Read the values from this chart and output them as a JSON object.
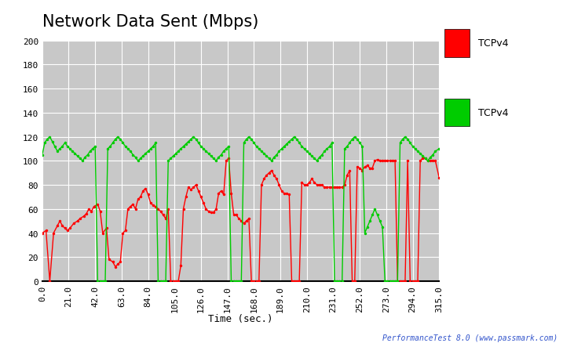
{
  "title": "Network Data Sent (Mbps)",
  "xlabel": "Time (sec.)",
  "ylabel": "",
  "xlim": [
    0,
    315
  ],
  "ylim": [
    0,
    200
  ],
  "xticks": [
    0.0,
    21.0,
    42.0,
    63.0,
    84.0,
    105.0,
    126.0,
    147.0,
    168.0,
    189.0,
    210.0,
    231.0,
    252.0,
    273.0,
    294.0,
    315.0
  ],
  "yticks": [
    0,
    20,
    40,
    60,
    80,
    100,
    120,
    140,
    160,
    180,
    200
  ],
  "background_color": "#ffffff",
  "plot_bg_color": "#c8c8c8",
  "grid_color": "#ffffff",
  "title_fontsize": 15,
  "axis_fontsize": 9,
  "tick_fontsize": 8,
  "watermark": "PerformanceTest 8.0 (www.passmark.com)",
  "legend": [
    {
      "label": "TCPv4",
      "color": "#ff0000"
    },
    {
      "label": "TCPv4",
      "color": "#00cc00"
    }
  ],
  "red_x": [
    0,
    3,
    6,
    9,
    12,
    14,
    16,
    18,
    20,
    22,
    25,
    28,
    30,
    33,
    35,
    37,
    39,
    41,
    44,
    46,
    48,
    51,
    53,
    56,
    58,
    60,
    62,
    64,
    66,
    68,
    70,
    72,
    74,
    76,
    78,
    80,
    82,
    84,
    86,
    88,
    90,
    92,
    94,
    96,
    98,
    100,
    102,
    104,
    106,
    108,
    110,
    112,
    114,
    116,
    118,
    120,
    122,
    124,
    126,
    128,
    130,
    132,
    134,
    136,
    138,
    140,
    142,
    144,
    146,
    148,
    150,
    152,
    154,
    156,
    158,
    160,
    162,
    164,
    166,
    168,
    170,
    172,
    174,
    176,
    178,
    180,
    182,
    184,
    186,
    188,
    190,
    192,
    194,
    196,
    198,
    200,
    202,
    204,
    206,
    208,
    210,
    212,
    214,
    216,
    218,
    220,
    222,
    224,
    226,
    228,
    230,
    232,
    234,
    236,
    238,
    240,
    242,
    244,
    246,
    248,
    250,
    252,
    254,
    256,
    258,
    260,
    262,
    264,
    266,
    268,
    270,
    272,
    274,
    276,
    278,
    280,
    282,
    284,
    286,
    288,
    290,
    292,
    294,
    296,
    298,
    300,
    302,
    304,
    306,
    308,
    310,
    312,
    315
  ],
  "red_y": [
    40,
    42,
    0,
    40,
    46,
    50,
    46,
    44,
    42,
    44,
    48,
    50,
    52,
    54,
    56,
    60,
    58,
    62,
    64,
    58,
    40,
    44,
    18,
    16,
    12,
    14,
    16,
    40,
    42,
    60,
    62,
    64,
    60,
    68,
    70,
    75,
    77,
    72,
    65,
    63,
    62,
    60,
    58,
    55,
    52,
    60,
    0,
    0,
    0,
    0,
    13,
    60,
    70,
    78,
    76,
    78,
    80,
    75,
    70,
    65,
    60,
    58,
    57,
    57,
    60,
    73,
    75,
    72,
    100,
    102,
    73,
    55,
    55,
    52,
    50,
    48,
    50,
    52,
    0,
    0,
    0,
    0,
    80,
    85,
    88,
    90,
    92,
    88,
    85,
    80,
    75,
    73,
    73,
    72,
    0,
    0,
    0,
    0,
    82,
    80,
    80,
    82,
    85,
    82,
    80,
    80,
    80,
    78,
    78,
    78,
    78,
    78,
    78,
    78,
    78,
    80,
    88,
    92,
    0,
    0,
    95,
    94,
    92,
    95,
    96,
    94,
    94,
    100,
    101,
    100,
    100,
    100,
    100,
    100,
    100,
    100,
    0,
    0,
    0,
    0,
    100,
    0,
    0,
    0,
    0,
    100,
    102,
    102,
    100,
    100,
    100,
    100,
    86
  ],
  "green_x": [
    0,
    2,
    4,
    6,
    8,
    10,
    12,
    14,
    16,
    18,
    20,
    22,
    24,
    26,
    28,
    30,
    32,
    34,
    36,
    38,
    40,
    42,
    44,
    46,
    48,
    50,
    52,
    54,
    56,
    58,
    60,
    62,
    64,
    66,
    68,
    70,
    72,
    74,
    76,
    78,
    80,
    82,
    84,
    86,
    88,
    90,
    92,
    94,
    96,
    98,
    100,
    102,
    104,
    106,
    108,
    110,
    112,
    114,
    116,
    118,
    120,
    122,
    124,
    126,
    128,
    130,
    132,
    134,
    136,
    138,
    140,
    142,
    144,
    146,
    148,
    150,
    152,
    154,
    156,
    158,
    160,
    162,
    164,
    166,
    168,
    170,
    172,
    174,
    176,
    178,
    180,
    182,
    184,
    186,
    188,
    190,
    192,
    194,
    196,
    198,
    200,
    202,
    204,
    206,
    208,
    210,
    212,
    214,
    216,
    218,
    220,
    222,
    224,
    226,
    228,
    230,
    232,
    234,
    236,
    238,
    240,
    242,
    244,
    246,
    248,
    250,
    252,
    254,
    256,
    258,
    260,
    262,
    264,
    266,
    268,
    270,
    272,
    274,
    276,
    278,
    280,
    282,
    284,
    286,
    288,
    290,
    292,
    294,
    296,
    298,
    300,
    302,
    304,
    306,
    308,
    310,
    312,
    315
  ],
  "green_y": [
    105,
    115,
    118,
    120,
    116,
    112,
    108,
    110,
    112,
    115,
    112,
    110,
    108,
    106,
    104,
    102,
    100,
    103,
    105,
    108,
    110,
    112,
    0,
    0,
    0,
    0,
    110,
    112,
    115,
    118,
    120,
    118,
    115,
    112,
    110,
    108,
    105,
    103,
    100,
    102,
    104,
    106,
    108,
    110,
    112,
    115,
    0,
    0,
    0,
    0,
    100,
    102,
    104,
    106,
    108,
    110,
    112,
    114,
    116,
    118,
    120,
    118,
    115,
    112,
    110,
    108,
    106,
    104,
    102,
    100,
    103,
    105,
    108,
    110,
    112,
    0,
    0,
    0,
    0,
    0,
    115,
    118,
    120,
    118,
    115,
    112,
    110,
    108,
    106,
    104,
    102,
    100,
    103,
    105,
    108,
    110,
    112,
    114,
    116,
    118,
    120,
    118,
    115,
    112,
    110,
    108,
    106,
    104,
    102,
    100,
    103,
    105,
    108,
    110,
    112,
    115,
    0,
    0,
    0,
    0,
    110,
    112,
    115,
    118,
    120,
    118,
    115,
    112,
    40,
    45,
    50,
    55,
    60,
    55,
    50,
    45,
    0,
    0,
    0,
    0,
    0,
    0,
    115,
    118,
    120,
    118,
    115,
    112,
    110,
    108,
    106,
    104,
    102,
    100,
    103,
    105,
    108,
    110
  ]
}
